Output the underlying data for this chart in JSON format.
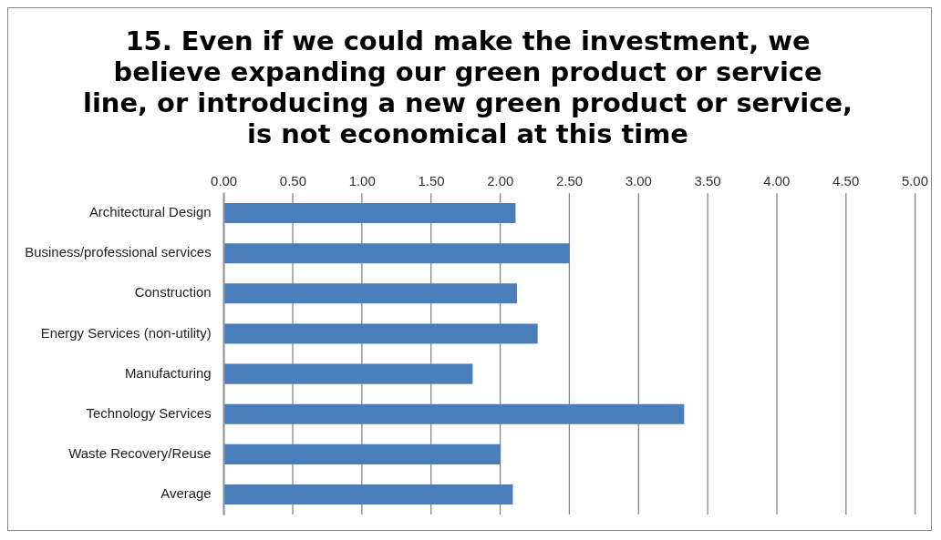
{
  "chart_data": {
    "type": "bar",
    "orientation": "horizontal",
    "title": [
      "15. Even if we could make the investment, we",
      "believe expanding our green product or service",
      "line, or introducing a new green product or service,",
      "is not economical at this time"
    ],
    "categories": [
      "Architectural Design",
      "Business/professional services",
      "Construction",
      "Energy Services (non-utility)",
      "Manufacturing",
      "Technology Services",
      "Waste Recovery/Reuse",
      "Average"
    ],
    "values": [
      2.11,
      2.5,
      2.12,
      2.27,
      1.8,
      3.33,
      2.0,
      2.09
    ],
    "color": "#4a7ebb",
    "xlim": [
      0,
      5
    ],
    "xticks": [
      {
        "value": 0,
        "label": "0.00"
      },
      {
        "value": 0.5,
        "label": "0.50"
      },
      {
        "value": 1,
        "label": "1.00"
      },
      {
        "value": 1.5,
        "label": "1.50"
      },
      {
        "value": 2,
        "label": "2.00"
      },
      {
        "value": 2.5,
        "label": "2.50"
      },
      {
        "value": 3,
        "label": "3.00"
      },
      {
        "value": 3.5,
        "label": "3.50"
      },
      {
        "value": 4,
        "label": "4.00"
      },
      {
        "value": 4.5,
        "label": "4.50"
      },
      {
        "value": 5,
        "label": "5.00"
      }
    ],
    "grid": "x",
    "legend": false
  }
}
